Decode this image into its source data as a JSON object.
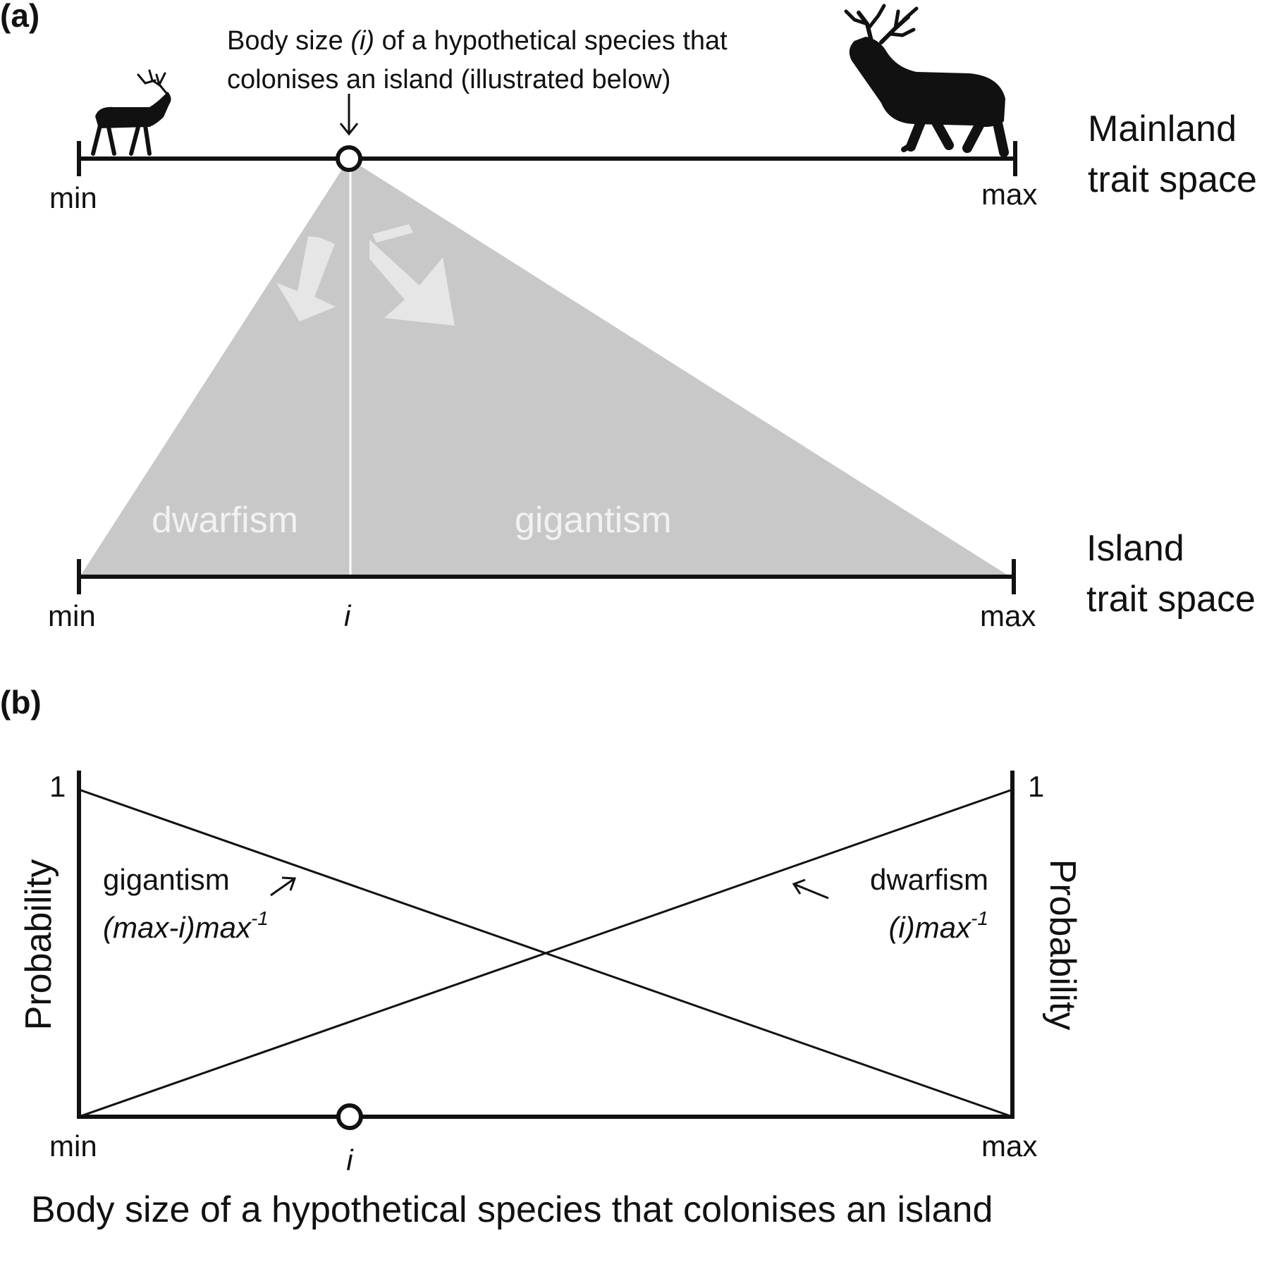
{
  "panel_a": {
    "label": "(a)",
    "caption_line1_pre": "Body size ",
    "caption_line1_ital": "(i)",
    "caption_line1_post": " of a hypothetical species that",
    "caption_line2": "colonises an island (illustrated below)",
    "mainland": {
      "line1": "Mainland",
      "line2": "trait space",
      "min_label": "min",
      "max_label": "max"
    },
    "island": {
      "line1": "Island",
      "line2": "trait space",
      "min_label": "min",
      "i_label": "i",
      "max_label": "max"
    },
    "zones": {
      "dwarfism": "dwarfism",
      "gigantism": "gigantism"
    },
    "colonist_position_fraction": 0.29,
    "icons": [
      "small-elk-icon",
      "large-elk-icon",
      "down-arrow-icon"
    ],
    "colors": {
      "fan": "#c8c8c8",
      "zone_text": "#f2f2f2",
      "line": "#111111"
    }
  },
  "panel_b": {
    "label": "(b)",
    "left_axis_title": "Probability",
    "right_axis_title": "Probability",
    "left_tick_top": "1",
    "right_tick_top": "1",
    "gigantism": {
      "label": "gigantism",
      "formula_main": "(max-i)max",
      "formula_sup": "-1"
    },
    "dwarfism": {
      "label": "dwarfism",
      "formula_main": "(i)max",
      "formula_sup": "-1"
    },
    "x_min": "min",
    "x_i": "i",
    "x_max": "max",
    "xlabel": "Body size of a hypothetical species that colonises an island"
  },
  "chart_data": {
    "type": "line",
    "x": [
      0,
      1
    ],
    "series": [
      {
        "name": "gigantism",
        "values": [
          1,
          0
        ]
      },
      {
        "name": "dwarfism",
        "values": [
          0,
          1
        ]
      }
    ],
    "xlim": [
      0,
      1
    ],
    "ylim": [
      0,
      1
    ],
    "marker_i": 0.29
  }
}
